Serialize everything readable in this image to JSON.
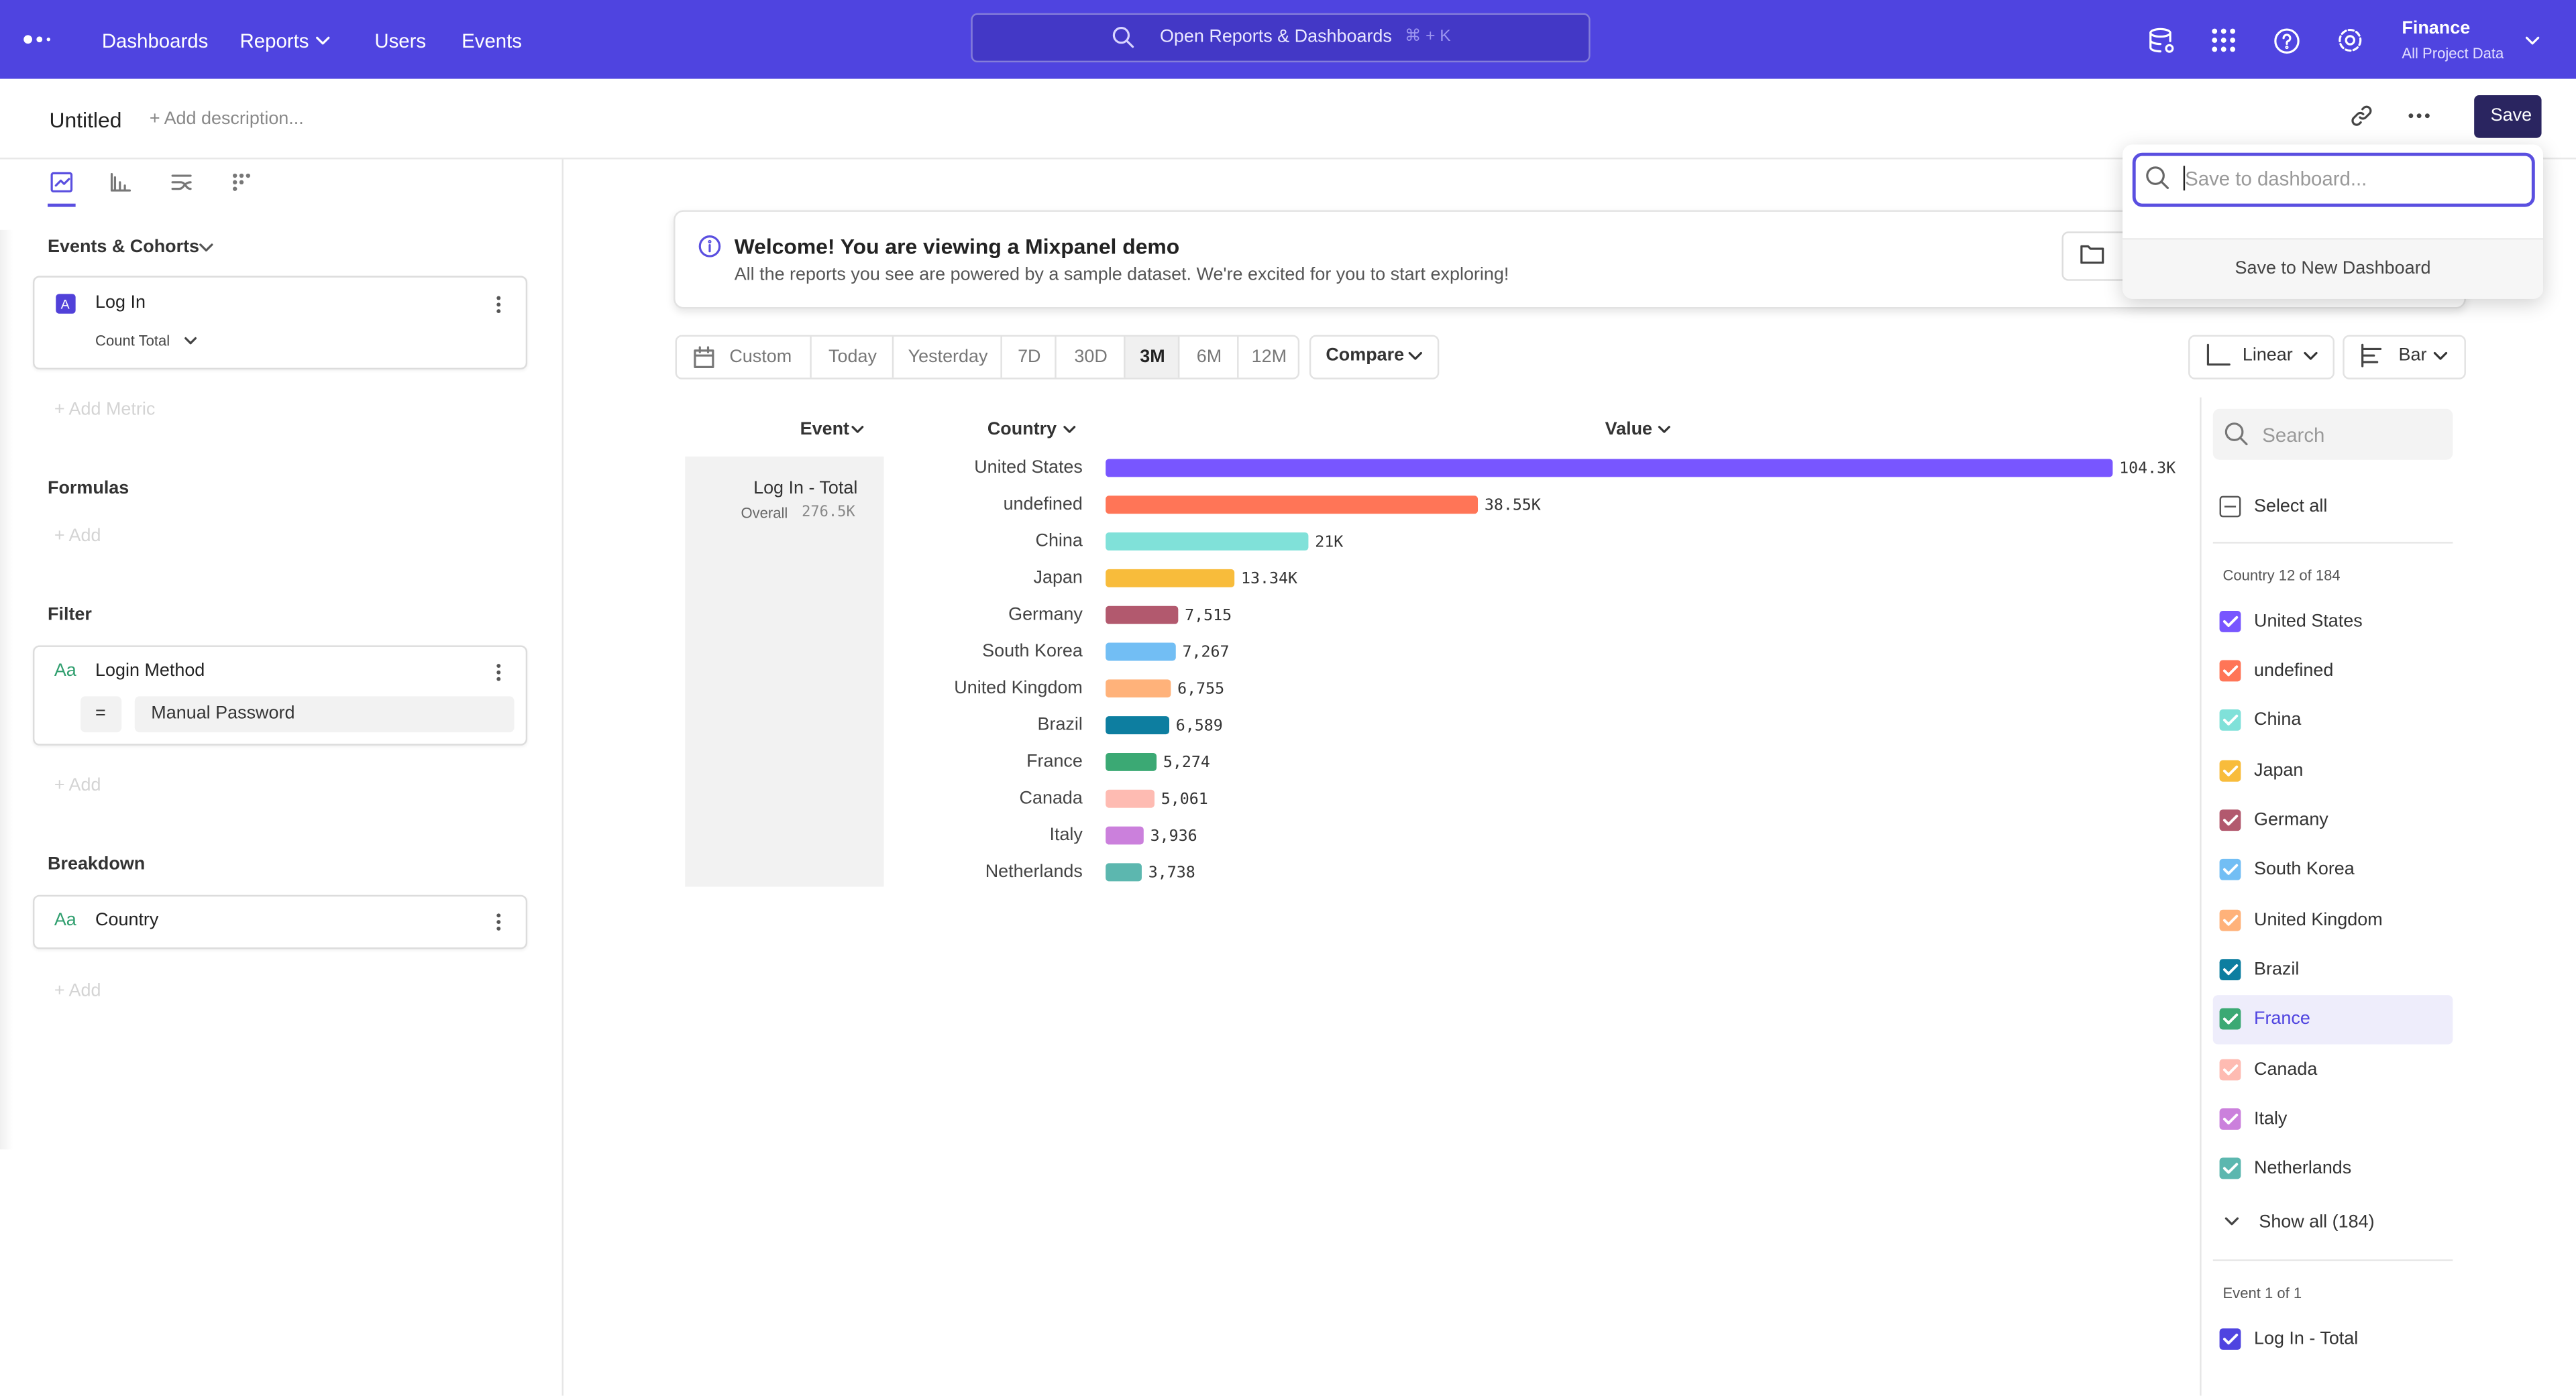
{
  "nav": {
    "links": [
      "Dashboards",
      "Reports",
      "Users",
      "Events"
    ],
    "search": "Open Reports & Dashboards",
    "shortcut": "⌘ + K",
    "project": "Finance",
    "project_scope": "All Project Data"
  },
  "header": {
    "title": "Untitled",
    "description": "+ Add description...",
    "save": "Save"
  },
  "save_popup": {
    "placeholder": "Save to dashboard...",
    "new_dashboard": "Save to New Dashboard"
  },
  "sidebar": {
    "events_heading": "Events & Cohorts",
    "metric": {
      "badge": "A",
      "name": "Log In",
      "measure": "Count Total"
    },
    "add_metric": "+ Add Metric",
    "formulas_heading": "Formulas",
    "formulas_add": "+ Add",
    "filter_heading": "Filter",
    "filter": {
      "icon": "Aa",
      "property": "Login Method",
      "operator": "=",
      "value": "Manual Password"
    },
    "filter_add": "+ Add",
    "breakdown_heading": "Breakdown",
    "breakdown": {
      "icon": "Aa",
      "property": "Country"
    },
    "breakdown_add": "+ Add"
  },
  "banner": {
    "title": "Welcome! You are viewing a Mixpanel demo",
    "text": "All the reports you see are powered by a sample dataset. We're excited for you to start exploring!"
  },
  "toolbar": {
    "ranges": [
      "Custom",
      "Today",
      "Yesterday",
      "7D",
      "30D",
      "3M",
      "6M",
      "12M"
    ],
    "active_range": "3M",
    "compare": "Compare",
    "scale": "Linear",
    "chart_type": "Bar"
  },
  "table": {
    "columns": [
      "Event",
      "Country",
      "Value"
    ],
    "event": "Log In - Total",
    "overall_label": "Overall",
    "overall_value": "276.5K"
  },
  "chart_data": {
    "type": "bar",
    "orientation": "horizontal",
    "categories": [
      "United States",
      "undefined",
      "China",
      "Japan",
      "Germany",
      "South Korea",
      "United Kingdom",
      "Brazil",
      "France",
      "Canada",
      "Italy",
      "Netherlands"
    ],
    "values": [
      104300,
      38550,
      21000,
      13340,
      7515,
      7267,
      6755,
      6589,
      5274,
      5061,
      3936,
      3738
    ],
    "value_labels": [
      "104.3K",
      "38.55K",
      "21K",
      "13.34K",
      "7,515",
      "7,267",
      "6,755",
      "6,589",
      "5,274",
      "5,061",
      "3,936",
      "3,738"
    ],
    "colors": [
      "#7856ff",
      "#ff7557",
      "#80e1d9",
      "#f8bc3b",
      "#b2596e",
      "#72bef4",
      "#ffb27a",
      "#0d7ea0",
      "#3ba974",
      "#febbb2",
      "#cb80dc",
      "#5cb7af"
    ]
  },
  "legend_panel": {
    "search": "Search",
    "select_all": "Select all",
    "country_count": "Country 12 of 184",
    "highlighted": "France",
    "show_all": "Show all (184)",
    "event_count": "Event 1 of 1",
    "events": [
      "Log In - Total"
    ]
  }
}
